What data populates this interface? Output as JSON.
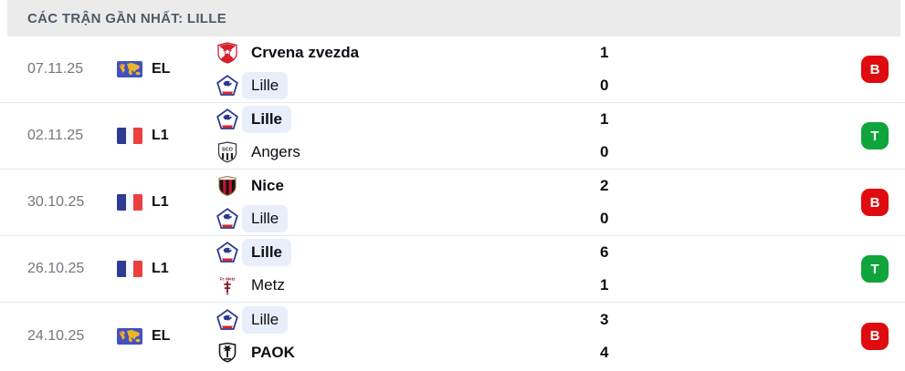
{
  "header": {
    "title": "CÁC TRẬN GẦN NHẤT: LILLE"
  },
  "colors": {
    "header_bg": "#ebebeb",
    "team_highlight": "#e9eefb",
    "win_badge": "#10a53c",
    "loss_badge": "#df0b0e"
  },
  "matches": [
    {
      "date": "07.11.25",
      "competition": {
        "code": "EL",
        "flag": "world"
      },
      "home": {
        "name": "Crvena zvezda",
        "logo": "crvena-zvezda",
        "score": "1",
        "winner": true,
        "highlight": false
      },
      "away": {
        "name": "Lille",
        "logo": "lille",
        "score": "0",
        "winner": false,
        "highlight": true
      },
      "result": {
        "label": "B",
        "type": "loss"
      }
    },
    {
      "date": "02.11.25",
      "competition": {
        "code": "L1",
        "flag": "france"
      },
      "home": {
        "name": "Lille",
        "logo": "lille",
        "score": "1",
        "winner": true,
        "highlight": true
      },
      "away": {
        "name": "Angers",
        "logo": "angers",
        "score": "0",
        "winner": false,
        "highlight": false
      },
      "result": {
        "label": "T",
        "type": "win"
      }
    },
    {
      "date": "30.10.25",
      "competition": {
        "code": "L1",
        "flag": "france"
      },
      "home": {
        "name": "Nice",
        "logo": "nice",
        "score": "2",
        "winner": true,
        "highlight": false
      },
      "away": {
        "name": "Lille",
        "logo": "lille",
        "score": "0",
        "winner": false,
        "highlight": true
      },
      "result": {
        "label": "B",
        "type": "loss"
      }
    },
    {
      "date": "26.10.25",
      "competition": {
        "code": "L1",
        "flag": "france"
      },
      "home": {
        "name": "Lille",
        "logo": "lille",
        "score": "6",
        "winner": true,
        "highlight": true
      },
      "away": {
        "name": "Metz",
        "logo": "metz",
        "score": "1",
        "winner": false,
        "highlight": false
      },
      "result": {
        "label": "T",
        "type": "win"
      }
    },
    {
      "date": "24.10.25",
      "competition": {
        "code": "EL",
        "flag": "world"
      },
      "home": {
        "name": "Lille",
        "logo": "lille",
        "score": "3",
        "winner": false,
        "highlight": true
      },
      "away": {
        "name": "PAOK",
        "logo": "paok",
        "score": "4",
        "winner": true,
        "highlight": false
      },
      "result": {
        "label": "B",
        "type": "loss"
      }
    }
  ]
}
